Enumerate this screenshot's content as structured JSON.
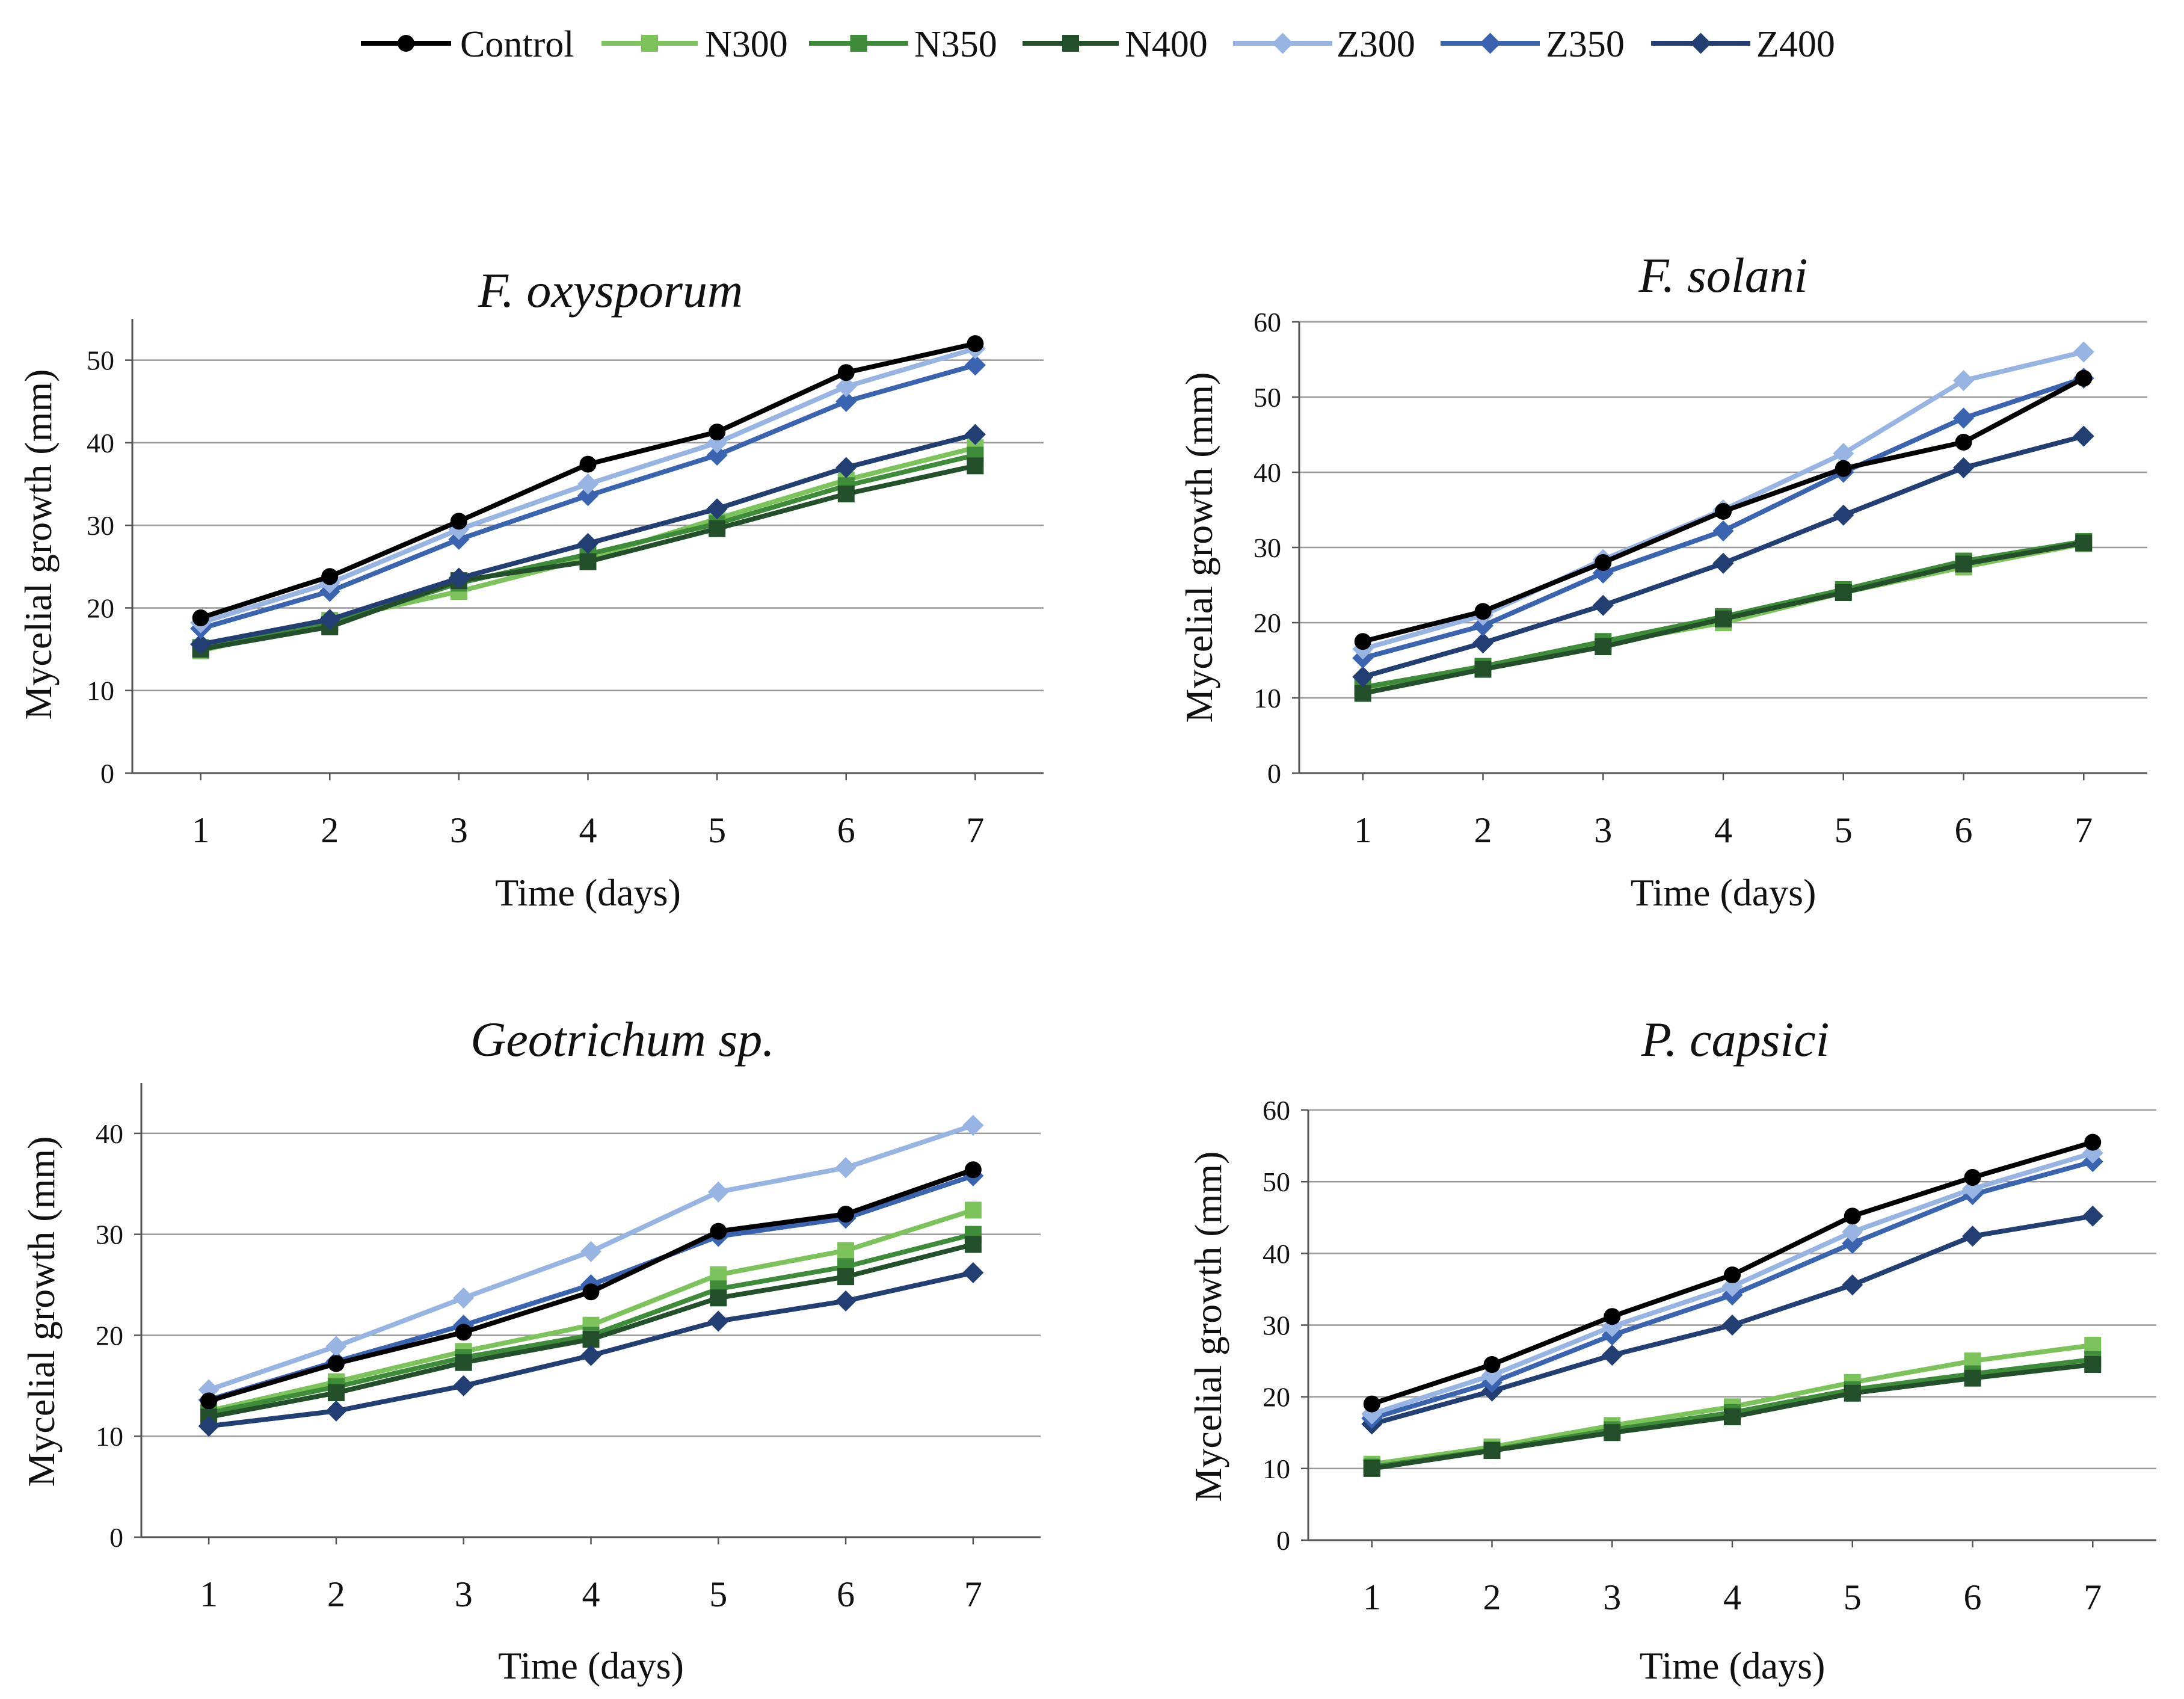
{
  "legend": [
    {
      "name": "Control",
      "color": "#000000",
      "marker": "circle"
    },
    {
      "name": "N300",
      "color": "#7cc35c",
      "marker": "square"
    },
    {
      "name": "N350",
      "color": "#3e8c3a",
      "marker": "square"
    },
    {
      "name": "N400",
      "color": "#234f2a",
      "marker": "square"
    },
    {
      "name": "Z300",
      "color": "#98b4e2",
      "marker": "diamond"
    },
    {
      "name": "Z350",
      "color": "#3b64b0",
      "marker": "diamond"
    },
    {
      "name": "Z400",
      "color": "#233e72",
      "marker": "diamond"
    }
  ],
  "chart_data": [
    {
      "type": "line",
      "title": "F. oxysporum",
      "xlabel": "Time (days)",
      "ylabel": "Mycelial growth (mm)",
      "x": [
        1,
        2,
        3,
        4,
        5,
        6,
        7
      ],
      "ylim": [
        0,
        55
      ],
      "yticks": [
        0,
        10,
        20,
        30,
        40,
        50
      ],
      "grid": true,
      "series": [
        {
          "name": "Control",
          "values": [
            18.8,
            23.8,
            30.5,
            37.4,
            41.3,
            48.5,
            52.0
          ]
        },
        {
          "name": "N300",
          "values": [
            14.8,
            18.5,
            22.0,
            26.0,
            30.8,
            35.5,
            39.4
          ]
        },
        {
          "name": "N350",
          "values": [
            15.2,
            18.0,
            23.0,
            26.5,
            30.2,
            34.8,
            38.5
          ]
        },
        {
          "name": "N400",
          "values": [
            15.0,
            17.7,
            23.3,
            25.6,
            29.6,
            33.8,
            37.2
          ]
        },
        {
          "name": "Z300",
          "values": [
            18.2,
            23.0,
            29.5,
            35.0,
            40.0,
            46.8,
            51.4
          ]
        },
        {
          "name": "Z350",
          "values": [
            17.5,
            22.0,
            28.3,
            33.6,
            38.5,
            45.0,
            49.4
          ]
        },
        {
          "name": "Z400",
          "values": [
            15.6,
            18.6,
            23.6,
            27.8,
            32.0,
            37.0,
            41.0
          ]
        }
      ]
    },
    {
      "type": "line",
      "title": "F. solani",
      "xlabel": "Time (days)",
      "ylabel": "Mycelial growth (mm)",
      "x": [
        1,
        2,
        3,
        4,
        5,
        6,
        7
      ],
      "ylim": [
        0,
        60
      ],
      "yticks": [
        0,
        10,
        20,
        30,
        40,
        50,
        60
      ],
      "grid": true,
      "series": [
        {
          "name": "Control",
          "values": [
            17.5,
            21.5,
            28.0,
            34.8,
            40.5,
            44.0,
            52.5
          ]
        },
        {
          "name": "N300",
          "values": [
            11.0,
            14.0,
            17.2,
            20.0,
            24.0,
            27.4,
            30.5
          ]
        },
        {
          "name": "N350",
          "values": [
            11.4,
            14.2,
            17.5,
            20.8,
            24.4,
            28.2,
            30.8
          ]
        },
        {
          "name": "N400",
          "values": [
            10.6,
            13.8,
            16.8,
            20.5,
            24.0,
            27.8,
            30.6
          ]
        },
        {
          "name": "Z300",
          "values": [
            16.5,
            21.0,
            28.4,
            35.0,
            42.5,
            52.2,
            56.0
          ]
        },
        {
          "name": "Z350",
          "values": [
            15.3,
            19.6,
            26.6,
            32.2,
            40.0,
            47.2,
            52.5
          ]
        },
        {
          "name": "Z400",
          "values": [
            12.8,
            17.3,
            22.3,
            27.9,
            34.3,
            40.6,
            44.8
          ]
        }
      ]
    },
    {
      "type": "line",
      "title": "Geotrichum sp.",
      "xlabel": "Time (days)",
      "ylabel": "Mycelial growth (mm)",
      "x": [
        1,
        2,
        3,
        4,
        5,
        6,
        7
      ],
      "ylim": [
        0,
        45
      ],
      "yticks": [
        0,
        10,
        20,
        30,
        40
      ],
      "grid": true,
      "series": [
        {
          "name": "Control",
          "values": [
            13.5,
            17.2,
            20.3,
            24.3,
            30.3,
            32.0,
            36.4
          ]
        },
        {
          "name": "N300",
          "values": [
            12.5,
            15.4,
            18.4,
            21.0,
            26.0,
            28.4,
            32.4
          ]
        },
        {
          "name": "N350",
          "values": [
            12.3,
            14.9,
            17.8,
            20.0,
            24.6,
            26.8,
            30.0
          ]
        },
        {
          "name": "N400",
          "values": [
            11.9,
            14.3,
            17.3,
            19.6,
            23.7,
            25.8,
            29.0
          ]
        },
        {
          "name": "Z300",
          "values": [
            14.6,
            18.9,
            23.7,
            28.3,
            34.2,
            36.6,
            40.8
          ]
        },
        {
          "name": "Z350",
          "values": [
            13.6,
            17.4,
            21.0,
            25.0,
            29.8,
            31.6,
            35.8
          ]
        },
        {
          "name": "Z400",
          "values": [
            11.0,
            12.5,
            15.0,
            18.0,
            21.4,
            23.4,
            26.2
          ]
        }
      ]
    },
    {
      "type": "line",
      "title": "P. capsici",
      "xlabel": "Time (days)",
      "ylabel": "Mycelial growth (mm)",
      "x": [
        1,
        2,
        3,
        4,
        5,
        6,
        7
      ],
      "ylim": [
        0,
        60
      ],
      "yticks": [
        0,
        10,
        20,
        30,
        40,
        50,
        60
      ],
      "grid": true,
      "series": [
        {
          "name": "Control",
          "values": [
            19.0,
            24.5,
            31.2,
            37.0,
            45.2,
            50.6,
            55.5
          ]
        },
        {
          "name": "N300",
          "values": [
            10.6,
            13.0,
            16.0,
            18.6,
            22.0,
            25.0,
            27.2
          ]
        },
        {
          "name": "N350",
          "values": [
            10.2,
            12.6,
            15.4,
            17.8,
            21.0,
            23.2,
            25.2
          ]
        },
        {
          "name": "N400",
          "values": [
            10.0,
            12.5,
            15.0,
            17.2,
            20.5,
            22.6,
            24.5
          ]
        },
        {
          "name": "Z300",
          "values": [
            17.6,
            23.0,
            29.8,
            35.4,
            43.0,
            49.0,
            54.0
          ]
        },
        {
          "name": "Z350",
          "values": [
            17.0,
            22.0,
            28.6,
            34.2,
            41.4,
            48.2,
            52.8
          ]
        },
        {
          "name": "Z400",
          "values": [
            16.2,
            20.8,
            25.8,
            30.0,
            35.6,
            42.4,
            45.2
          ]
        }
      ]
    }
  ]
}
